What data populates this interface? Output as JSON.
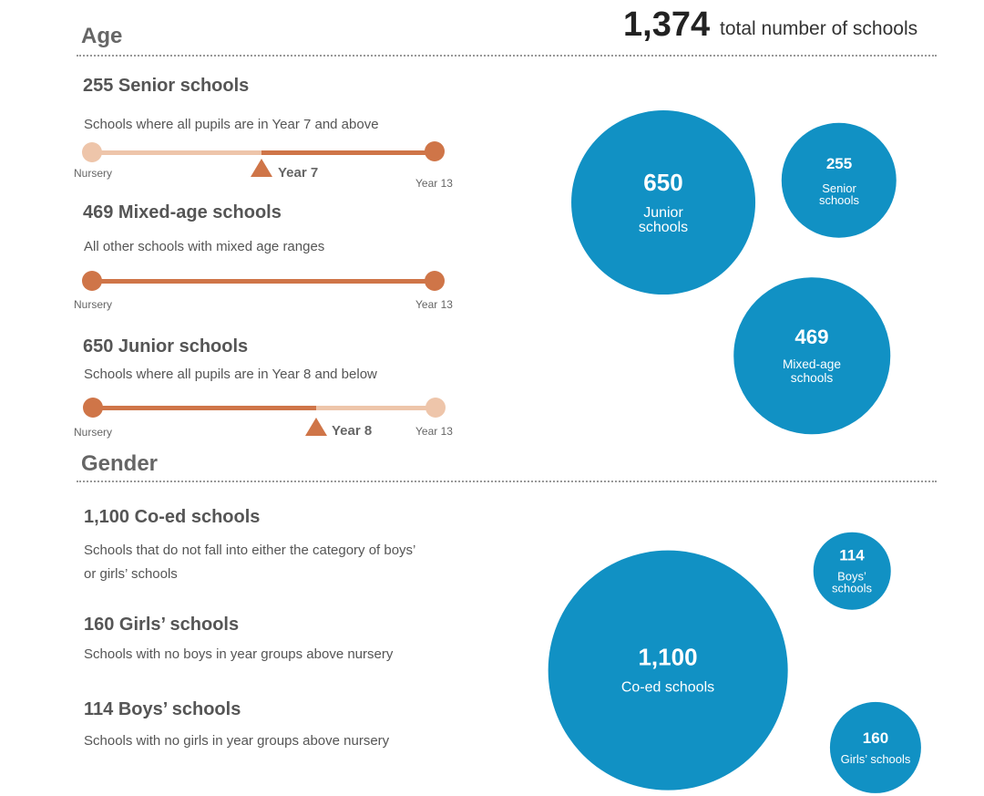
{
  "total": {
    "count": "1,374",
    "text": "total number of schools"
  },
  "age": {
    "heading": "Age",
    "groups": [
      {
        "title": "255 Senior schools",
        "description": "Schools where all pupils are in Year 7 and above",
        "scale_start": "Nursery",
        "scale_end": "Year 13",
        "marker": "Year 7"
      },
      {
        "title": "469 Mixed-age schools",
        "description": "All other schools with mixed age ranges",
        "scale_start": "Nursery",
        "scale_end": "Year 13"
      },
      {
        "title": "650 Junior schools",
        "description": "Schools where all pupils are in Year 8 and below",
        "scale_start": "Nursery",
        "scale_end": "Year 13",
        "marker": "Year 8"
      }
    ],
    "bubbles": [
      {
        "count": 650,
        "label": "Junior schools"
      },
      {
        "count": 255,
        "label": "Senior schools"
      },
      {
        "count": 469,
        "label": "Mixed-age schools"
      }
    ]
  },
  "gender": {
    "heading": "Gender",
    "groups": [
      {
        "title": "1,100 Co-ed schools",
        "description": "Schools that do not fall into either the category of boys’ or girls’ schools"
      },
      {
        "title": "160 Girls’ schools",
        "description": "Schools with no boys in year groups above nursery"
      },
      {
        "title": "114 Boys’ schools",
        "description": "Schools with no girls in year groups above nursery"
      }
    ],
    "bubbles": [
      {
        "count": {
          "value": 1100,
          "label": "1,100"
        },
        "label": "Co-ed schools"
      },
      {
        "count": 114,
        "label": "Boys’ schools"
      },
      {
        "count": 160,
        "label": "Girls’ schools"
      }
    ]
  }
}
